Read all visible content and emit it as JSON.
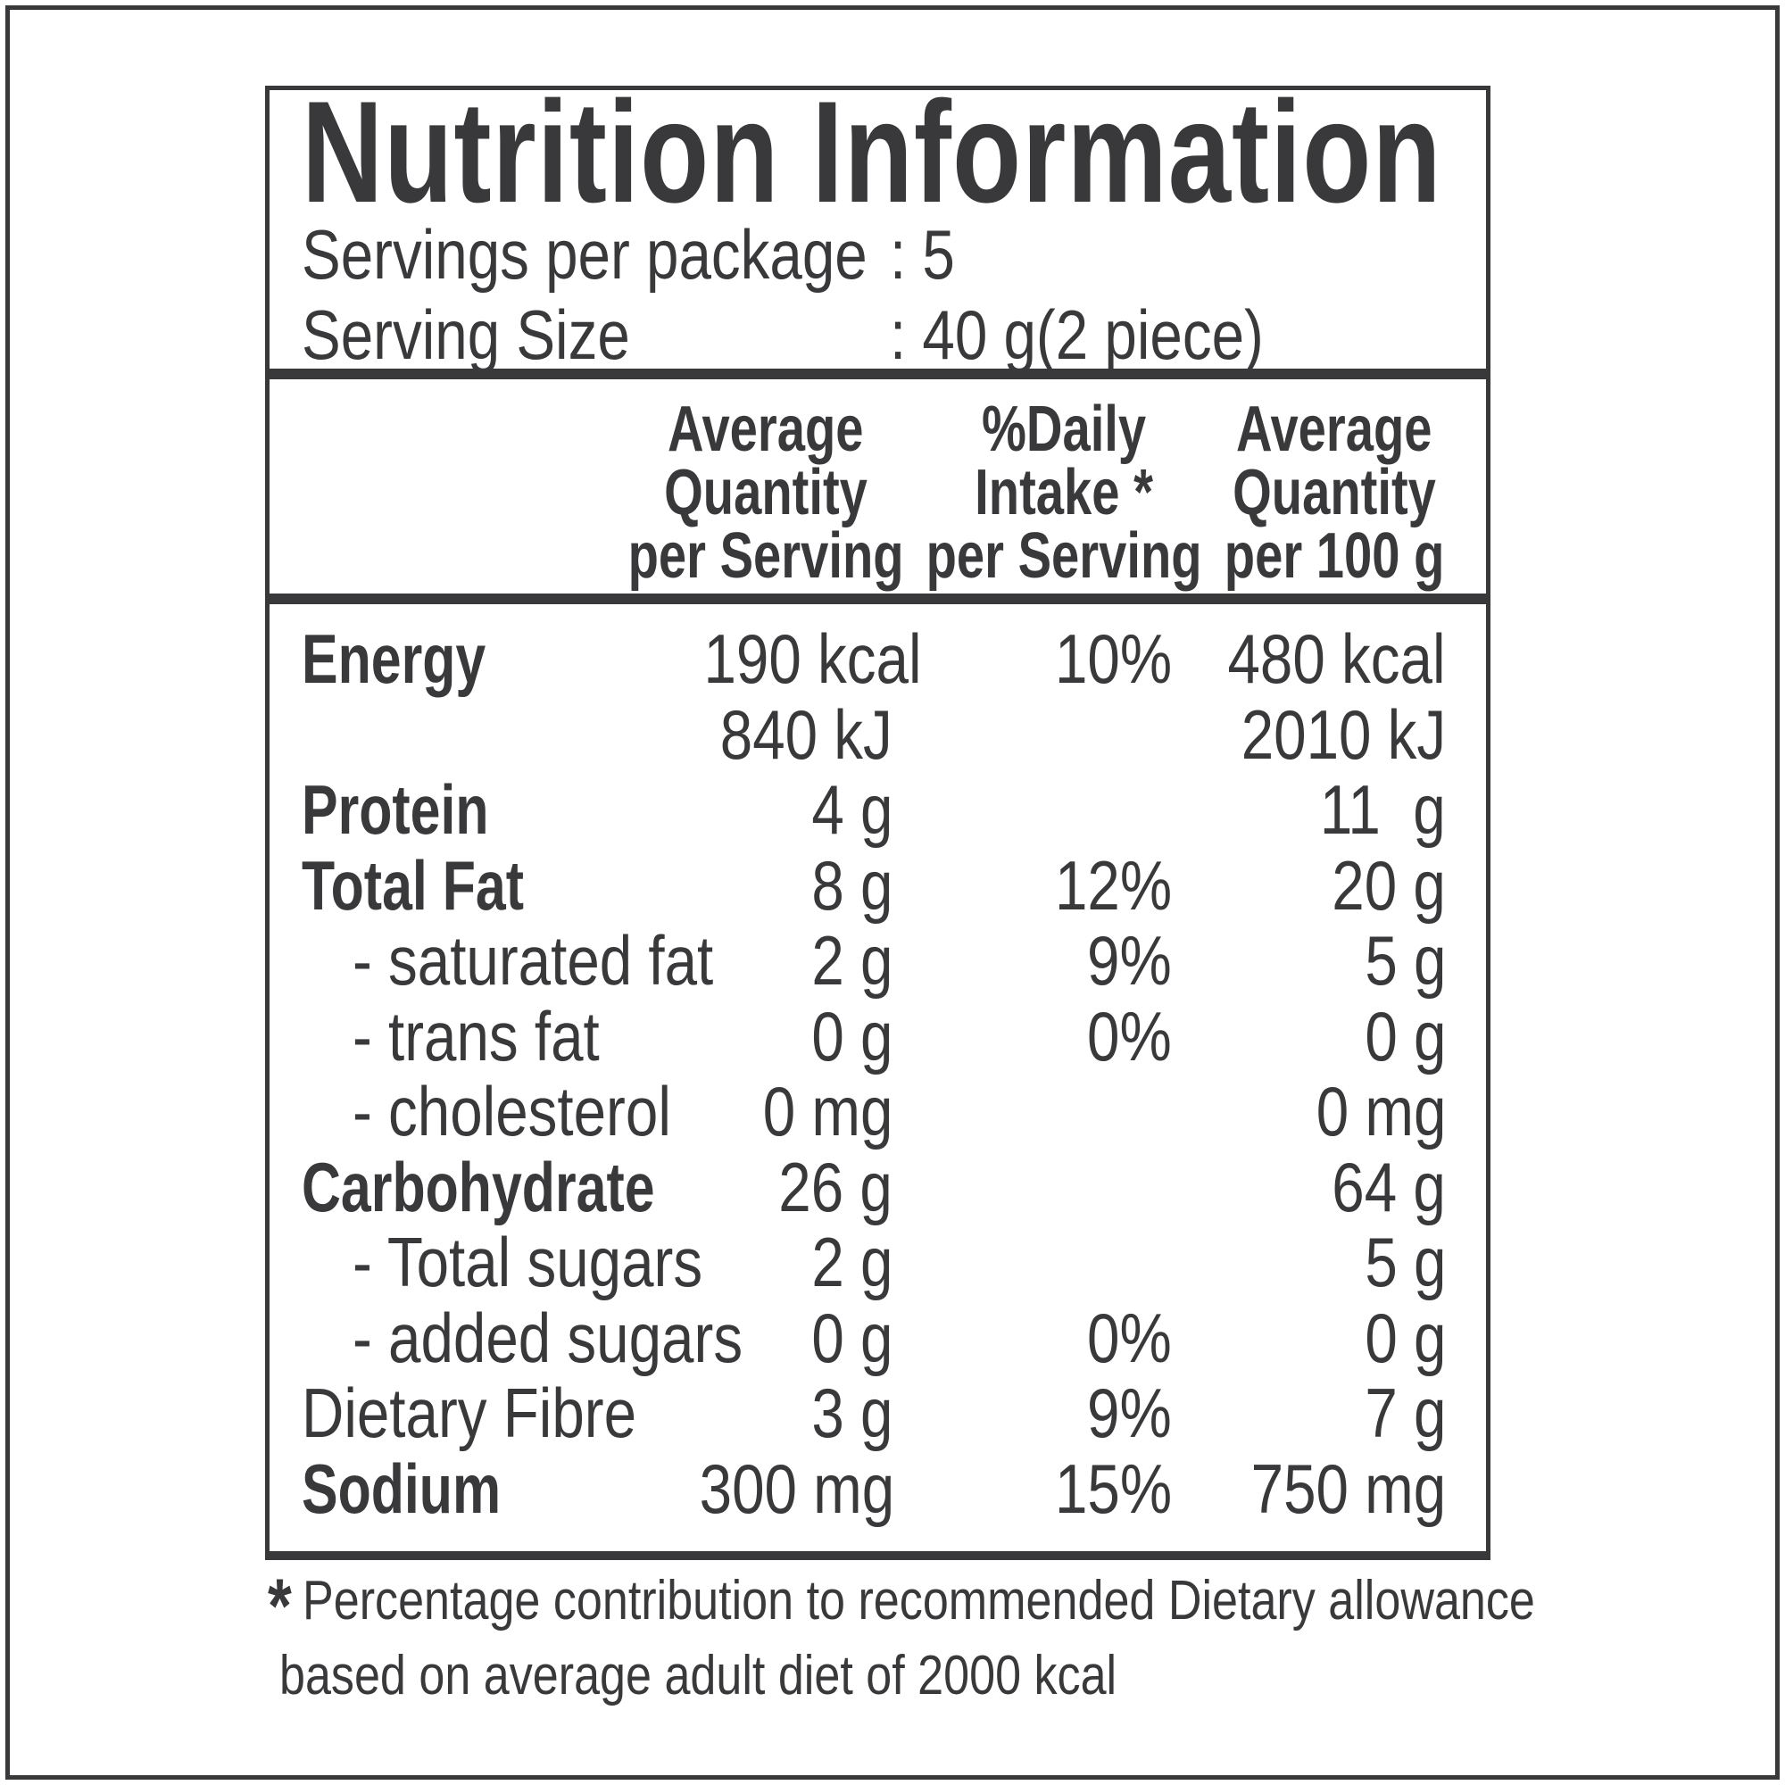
{
  "colors": {
    "ink": "#39393b",
    "background": "#ffffff"
  },
  "label": {
    "title": "Nutrition Information",
    "servings_per_package": {
      "label": "Servings per package",
      "value": "5",
      "display_value": ": 5"
    },
    "serving_size": {
      "label": "Serving Size",
      "value": "40 g(2 piece)",
      "display_value": ": 40 g(2 piece)"
    }
  },
  "table": {
    "column_headers": [
      {
        "lines": [
          "Average",
          "Quantity",
          "per Serving"
        ]
      },
      {
        "lines": [
          "%Daily",
          "Intake *",
          "per Serving"
        ]
      },
      {
        "lines": [
          "Average",
          "Quantity",
          "per 100 g"
        ]
      }
    ],
    "rows": [
      {
        "name": "Energy",
        "per_serving": "190 kcal",
        "daily_intake": "10%",
        "per_100g": "480 kcal"
      },
      {
        "name": "",
        "per_serving": "840 kJ",
        "daily_intake": "",
        "per_100g": "2010 kJ"
      },
      {
        "name": "Protein",
        "per_serving": "4 g",
        "daily_intake": "",
        "per_100g": "11  g"
      },
      {
        "name": "Total Fat",
        "per_serving": "8 g",
        "daily_intake": "12%",
        "per_100g": "20 g"
      },
      {
        "name": "- saturated fat",
        "per_serving": "2 g",
        "daily_intake": "9%",
        "per_100g": "5 g"
      },
      {
        "name": "- trans fat",
        "per_serving": "0 g",
        "daily_intake": "0%",
        "per_100g": "0 g"
      },
      {
        "name": "- cholesterol",
        "per_serving": "0 mg",
        "daily_intake": "",
        "per_100g": "0 mg"
      },
      {
        "name": "Carbohydrate",
        "per_serving": "26 g",
        "daily_intake": "",
        "per_100g": "64 g"
      },
      {
        "name": "- Total sugars",
        "per_serving": "2 g",
        "daily_intake": "",
        "per_100g": "5 g"
      },
      {
        "name": "- added sugars",
        "per_serving": "0 g",
        "daily_intake": "0%",
        "per_100g": "0 g"
      },
      {
        "name": "Dietary Fibre",
        "per_serving": "3 g",
        "daily_intake": "9%",
        "per_100g": "7 g"
      },
      {
        "name": "Sodium",
        "per_serving": "300 mg",
        "daily_intake": "15%",
        "per_100g": "750 mg"
      }
    ]
  },
  "footnote": {
    "marker": "*",
    "line1": "Percentage contribution to recommended Dietary allowance",
    "line2": "based on average adult diet of 2000 kcal"
  }
}
